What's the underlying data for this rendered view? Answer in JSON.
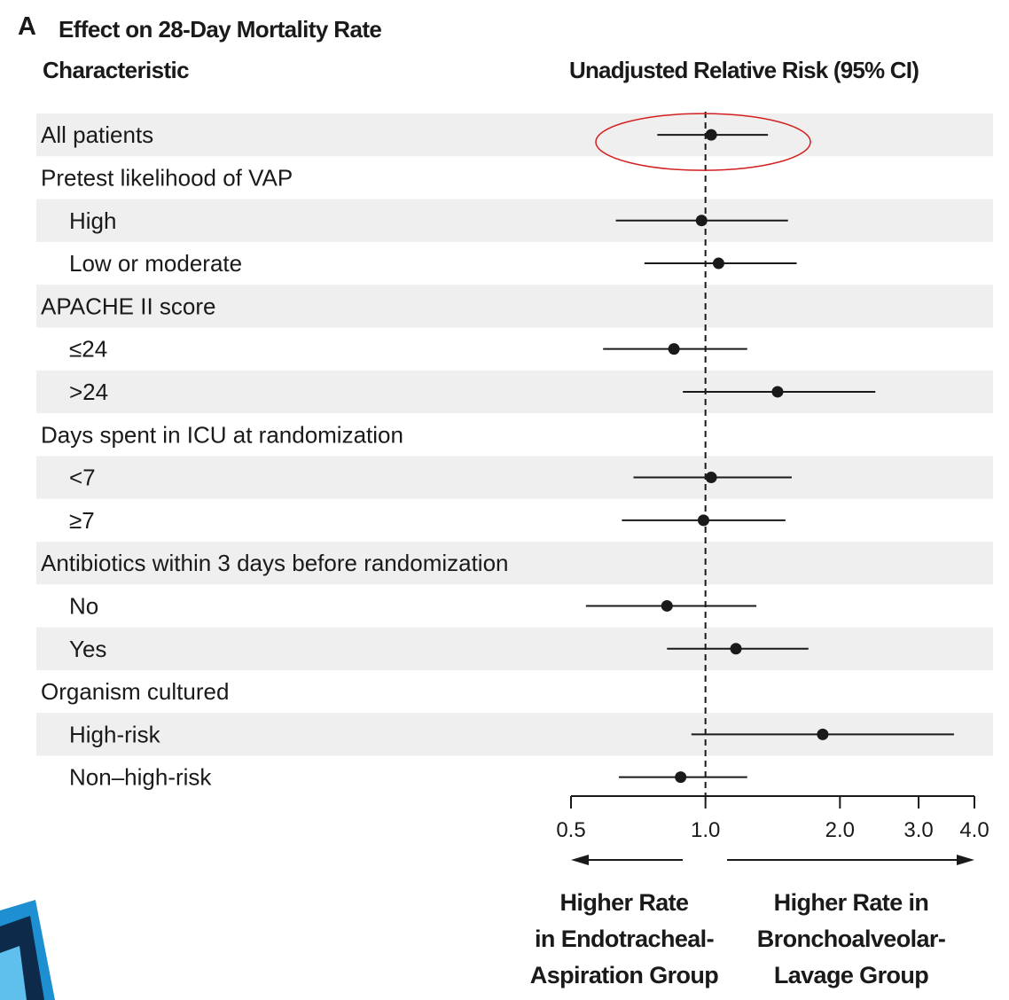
{
  "chart_data": {
    "type": "forest",
    "panel_letter": "A",
    "title": "Effect on 28-Day Mortality Rate",
    "column_headers": {
      "left": "Characteristic",
      "right": "Unadjusted Relative Risk (95% CI)"
    },
    "x_axis": {
      "scale": "log",
      "range": [
        0.5,
        4.0
      ],
      "ticks": [
        0.5,
        1.0,
        2.0,
        3.0,
        4.0
      ],
      "tick_labels": [
        "0.5",
        "1.0",
        "2.0",
        "3.0",
        "4.0"
      ],
      "reference_line": 1.0
    },
    "rows": [
      {
        "label": "All patients",
        "indent": false,
        "rr": 1.03,
        "lo": 0.78,
        "hi": 1.38,
        "shaded": true,
        "highlighted": true
      },
      {
        "label": "Pretest likelihood of VAP",
        "indent": false,
        "header": true,
        "shaded": false
      },
      {
        "label": "High",
        "indent": true,
        "rr": 0.98,
        "lo": 0.63,
        "hi": 1.53,
        "shaded": true
      },
      {
        "label": "Low or moderate",
        "indent": true,
        "rr": 1.07,
        "lo": 0.73,
        "hi": 1.6,
        "shaded": false
      },
      {
        "label": "APACHE II score",
        "indent": false,
        "header": true,
        "shaded": true
      },
      {
        "label": "≤24",
        "indent": true,
        "rr": 0.85,
        "lo": 0.59,
        "hi": 1.24,
        "shaded": false
      },
      {
        "label": ">24",
        "indent": true,
        "rr": 1.45,
        "lo": 0.89,
        "hi": 2.4,
        "shaded": true
      },
      {
        "label": "Days spent in ICU at randomization",
        "indent": false,
        "header": true,
        "shaded": false
      },
      {
        "label": "<7",
        "indent": true,
        "rr": 1.03,
        "lo": 0.69,
        "hi": 1.56,
        "shaded": true
      },
      {
        "label": "≥7",
        "indent": true,
        "rr": 0.99,
        "lo": 0.65,
        "hi": 1.51,
        "shaded": false
      },
      {
        "label": "Antibiotics within 3 days before randomization",
        "indent": false,
        "header": true,
        "shaded": true
      },
      {
        "label": "No",
        "indent": true,
        "rr": 0.82,
        "lo": 0.54,
        "hi": 1.3,
        "shaded": false
      },
      {
        "label": "Yes",
        "indent": true,
        "rr": 1.17,
        "lo": 0.82,
        "hi": 1.7,
        "shaded": true
      },
      {
        "label": "Organism cultured",
        "indent": false,
        "header": true,
        "shaded": false
      },
      {
        "label": "High-risk",
        "indent": true,
        "rr": 1.83,
        "lo": 0.93,
        "hi": 3.6,
        "shaded": true
      },
      {
        "label": "Non–high-risk",
        "indent": true,
        "rr": 0.88,
        "lo": 0.64,
        "hi": 1.24,
        "shaded": false
      }
    ],
    "direction_labels": {
      "left": [
        "Higher Rate",
        "in Endotracheal-",
        "Aspiration Group"
      ],
      "right": [
        "Higher Rate in",
        "Bronchoalveolar-",
        "Lavage Group"
      ]
    },
    "colors": {
      "row_shading": "#efefef",
      "ink": "#1a1a1a",
      "highlight_ellipse": "#d42020"
    }
  }
}
